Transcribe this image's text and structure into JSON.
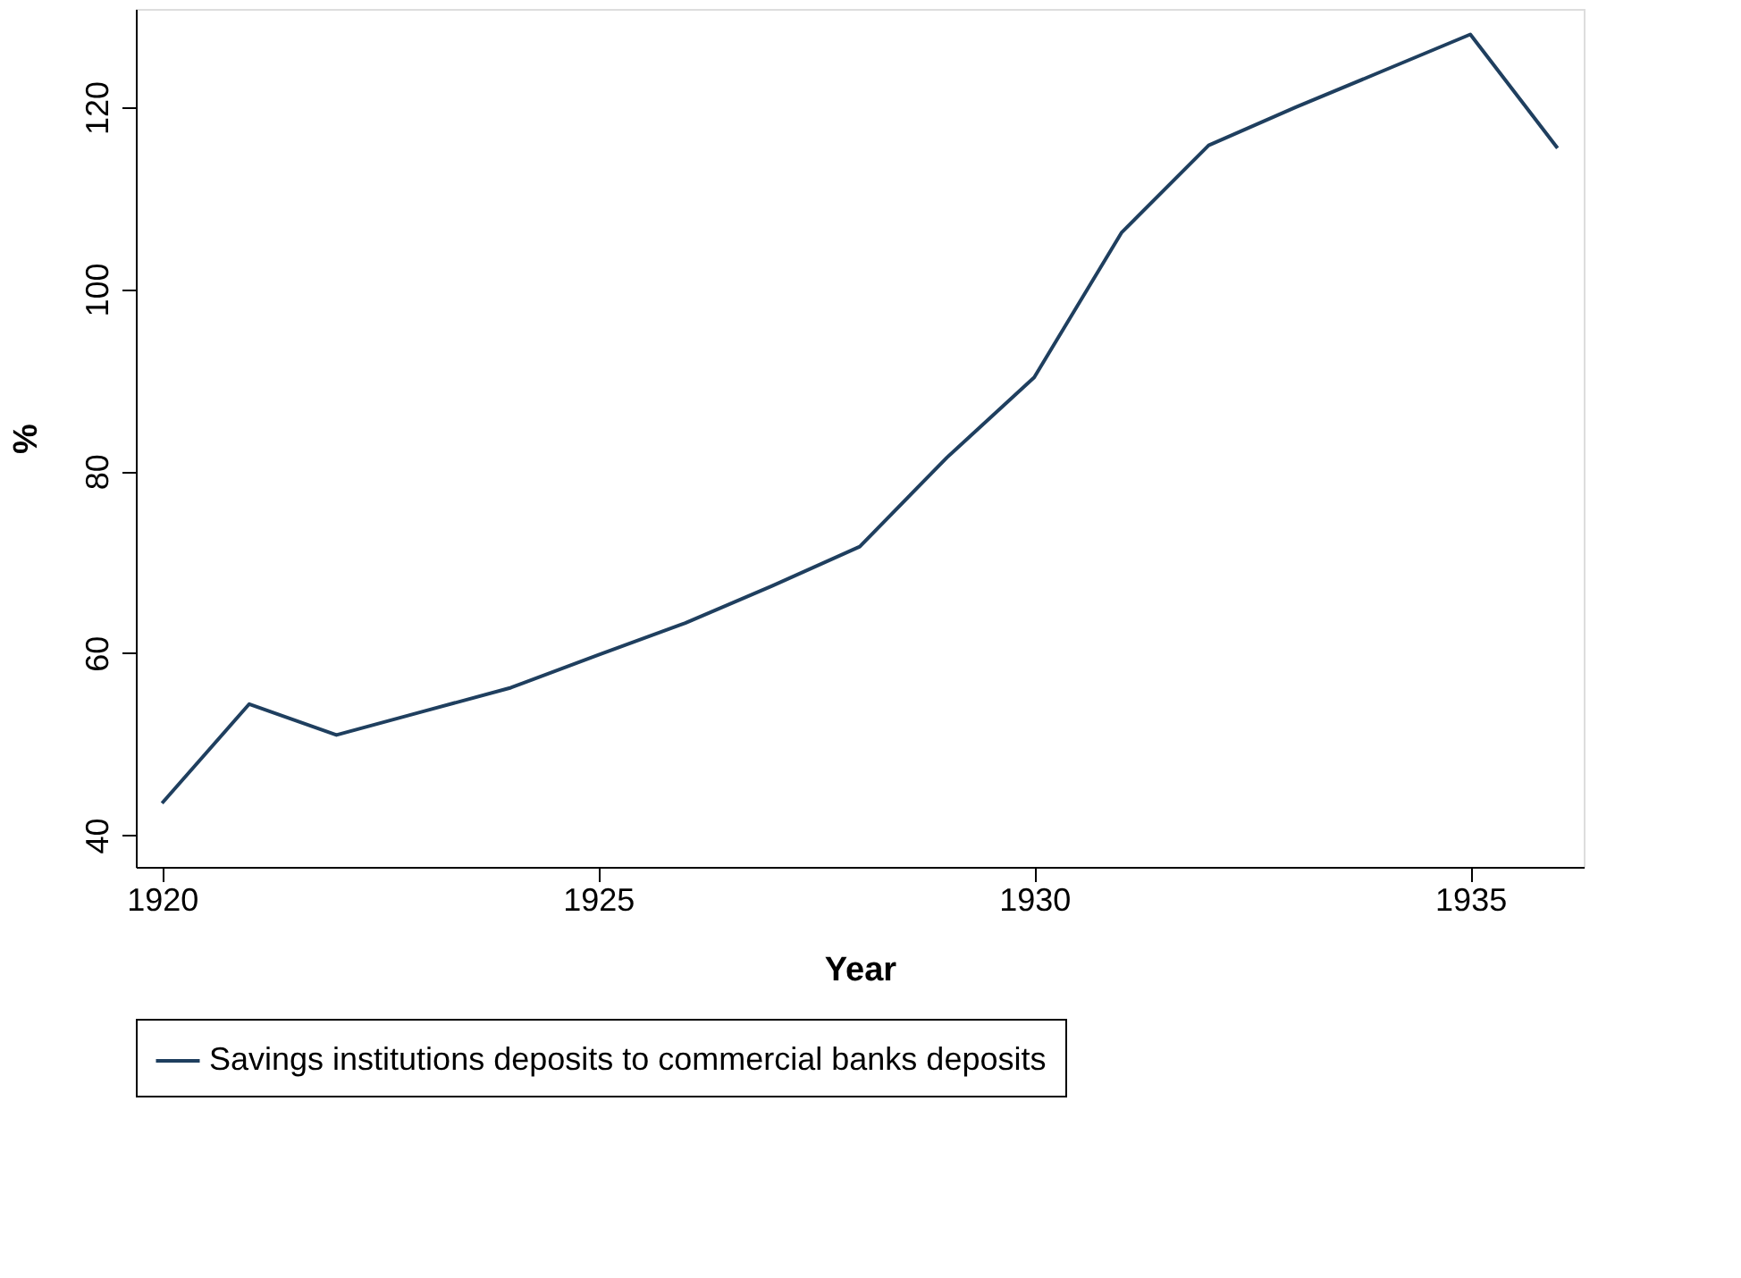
{
  "chart_data": {
    "type": "line",
    "xlabel": "Year",
    "ylabel": "%",
    "x": [
      1920,
      1921,
      1922,
      1923,
      1924,
      1925,
      1926,
      1927,
      1928,
      1929,
      1930,
      1931,
      1932,
      1933,
      1934,
      1935,
      1936
    ],
    "series": [
      {
        "name": "Savings institutions deposits to commercial banks deposits",
        "color": "#1f3f5f",
        "values": [
          43.5,
          54.4,
          51.0,
          53.6,
          56.2,
          59.8,
          63.3,
          67.4,
          71.7,
          81.5,
          90.3,
          106.2,
          115.8,
          120,
          124,
          128,
          115.5
        ]
      }
    ],
    "xlim": [
      1919.7,
      1936.3
    ],
    "ylim": [
      36.5,
      130.8
    ],
    "xticks": [
      1920,
      1925,
      1930,
      1935
    ],
    "yticks": [
      40,
      60,
      80,
      100,
      120
    ],
    "grid": false,
    "legend": "bottom",
    "marker": "none",
    "line_style": "solid"
  }
}
